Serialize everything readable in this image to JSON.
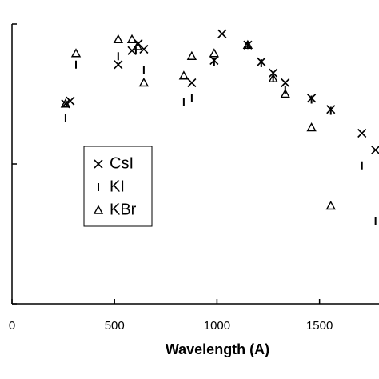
{
  "chart_data": {
    "type": "scatter",
    "xlabel": "Wavelength (A)",
    "xlim": [
      0,
      1790
    ],
    "xticks": [
      0,
      500,
      1000,
      1500
    ],
    "ylim": [
      0,
      2
    ],
    "yticks": [
      0,
      1,
      2
    ],
    "legend": "left",
    "series": [
      {
        "name": "CsI",
        "color": "#000000",
        "marker": "x",
        "x": [
          261,
          284,
          518,
          585,
          616,
          643,
          877,
          986,
          1025,
          1150,
          1216,
          1274,
          1333,
          1461,
          1555,
          1707,
          1773
        ],
        "values": [
          1.43,
          1.45,
          1.71,
          1.81,
          1.86,
          1.82,
          1.58,
          1.74,
          1.93,
          1.85,
          1.73,
          1.65,
          1.58,
          1.47,
          1.39,
          1.22,
          1.1
        ]
      },
      {
        "name": "KI",
        "color": "#000000",
        "marker": "|",
        "x": [
          261,
          312,
          518,
          604,
          643,
          838,
          877,
          986,
          1150,
          1216,
          1274,
          1333,
          1461,
          1555,
          1707,
          1773
        ],
        "values": [
          1.33,
          1.71,
          1.77,
          1.81,
          1.67,
          1.44,
          1.47,
          1.73,
          1.85,
          1.72,
          1.62,
          1.53,
          1.46,
          1.38,
          0.99,
          0.59
        ]
      },
      {
        "name": "KBr",
        "color": "#000000",
        "marker": "triangle",
        "x": [
          261,
          312,
          518,
          585,
          612,
          643,
          838,
          877,
          986,
          1150,
          1274,
          1333,
          1461,
          1555
        ],
        "values": [
          1.43,
          1.79,
          1.89,
          1.89,
          1.84,
          1.58,
          1.63,
          1.77,
          1.79,
          1.85,
          1.61,
          1.5,
          1.26,
          0.7
        ]
      }
    ]
  }
}
